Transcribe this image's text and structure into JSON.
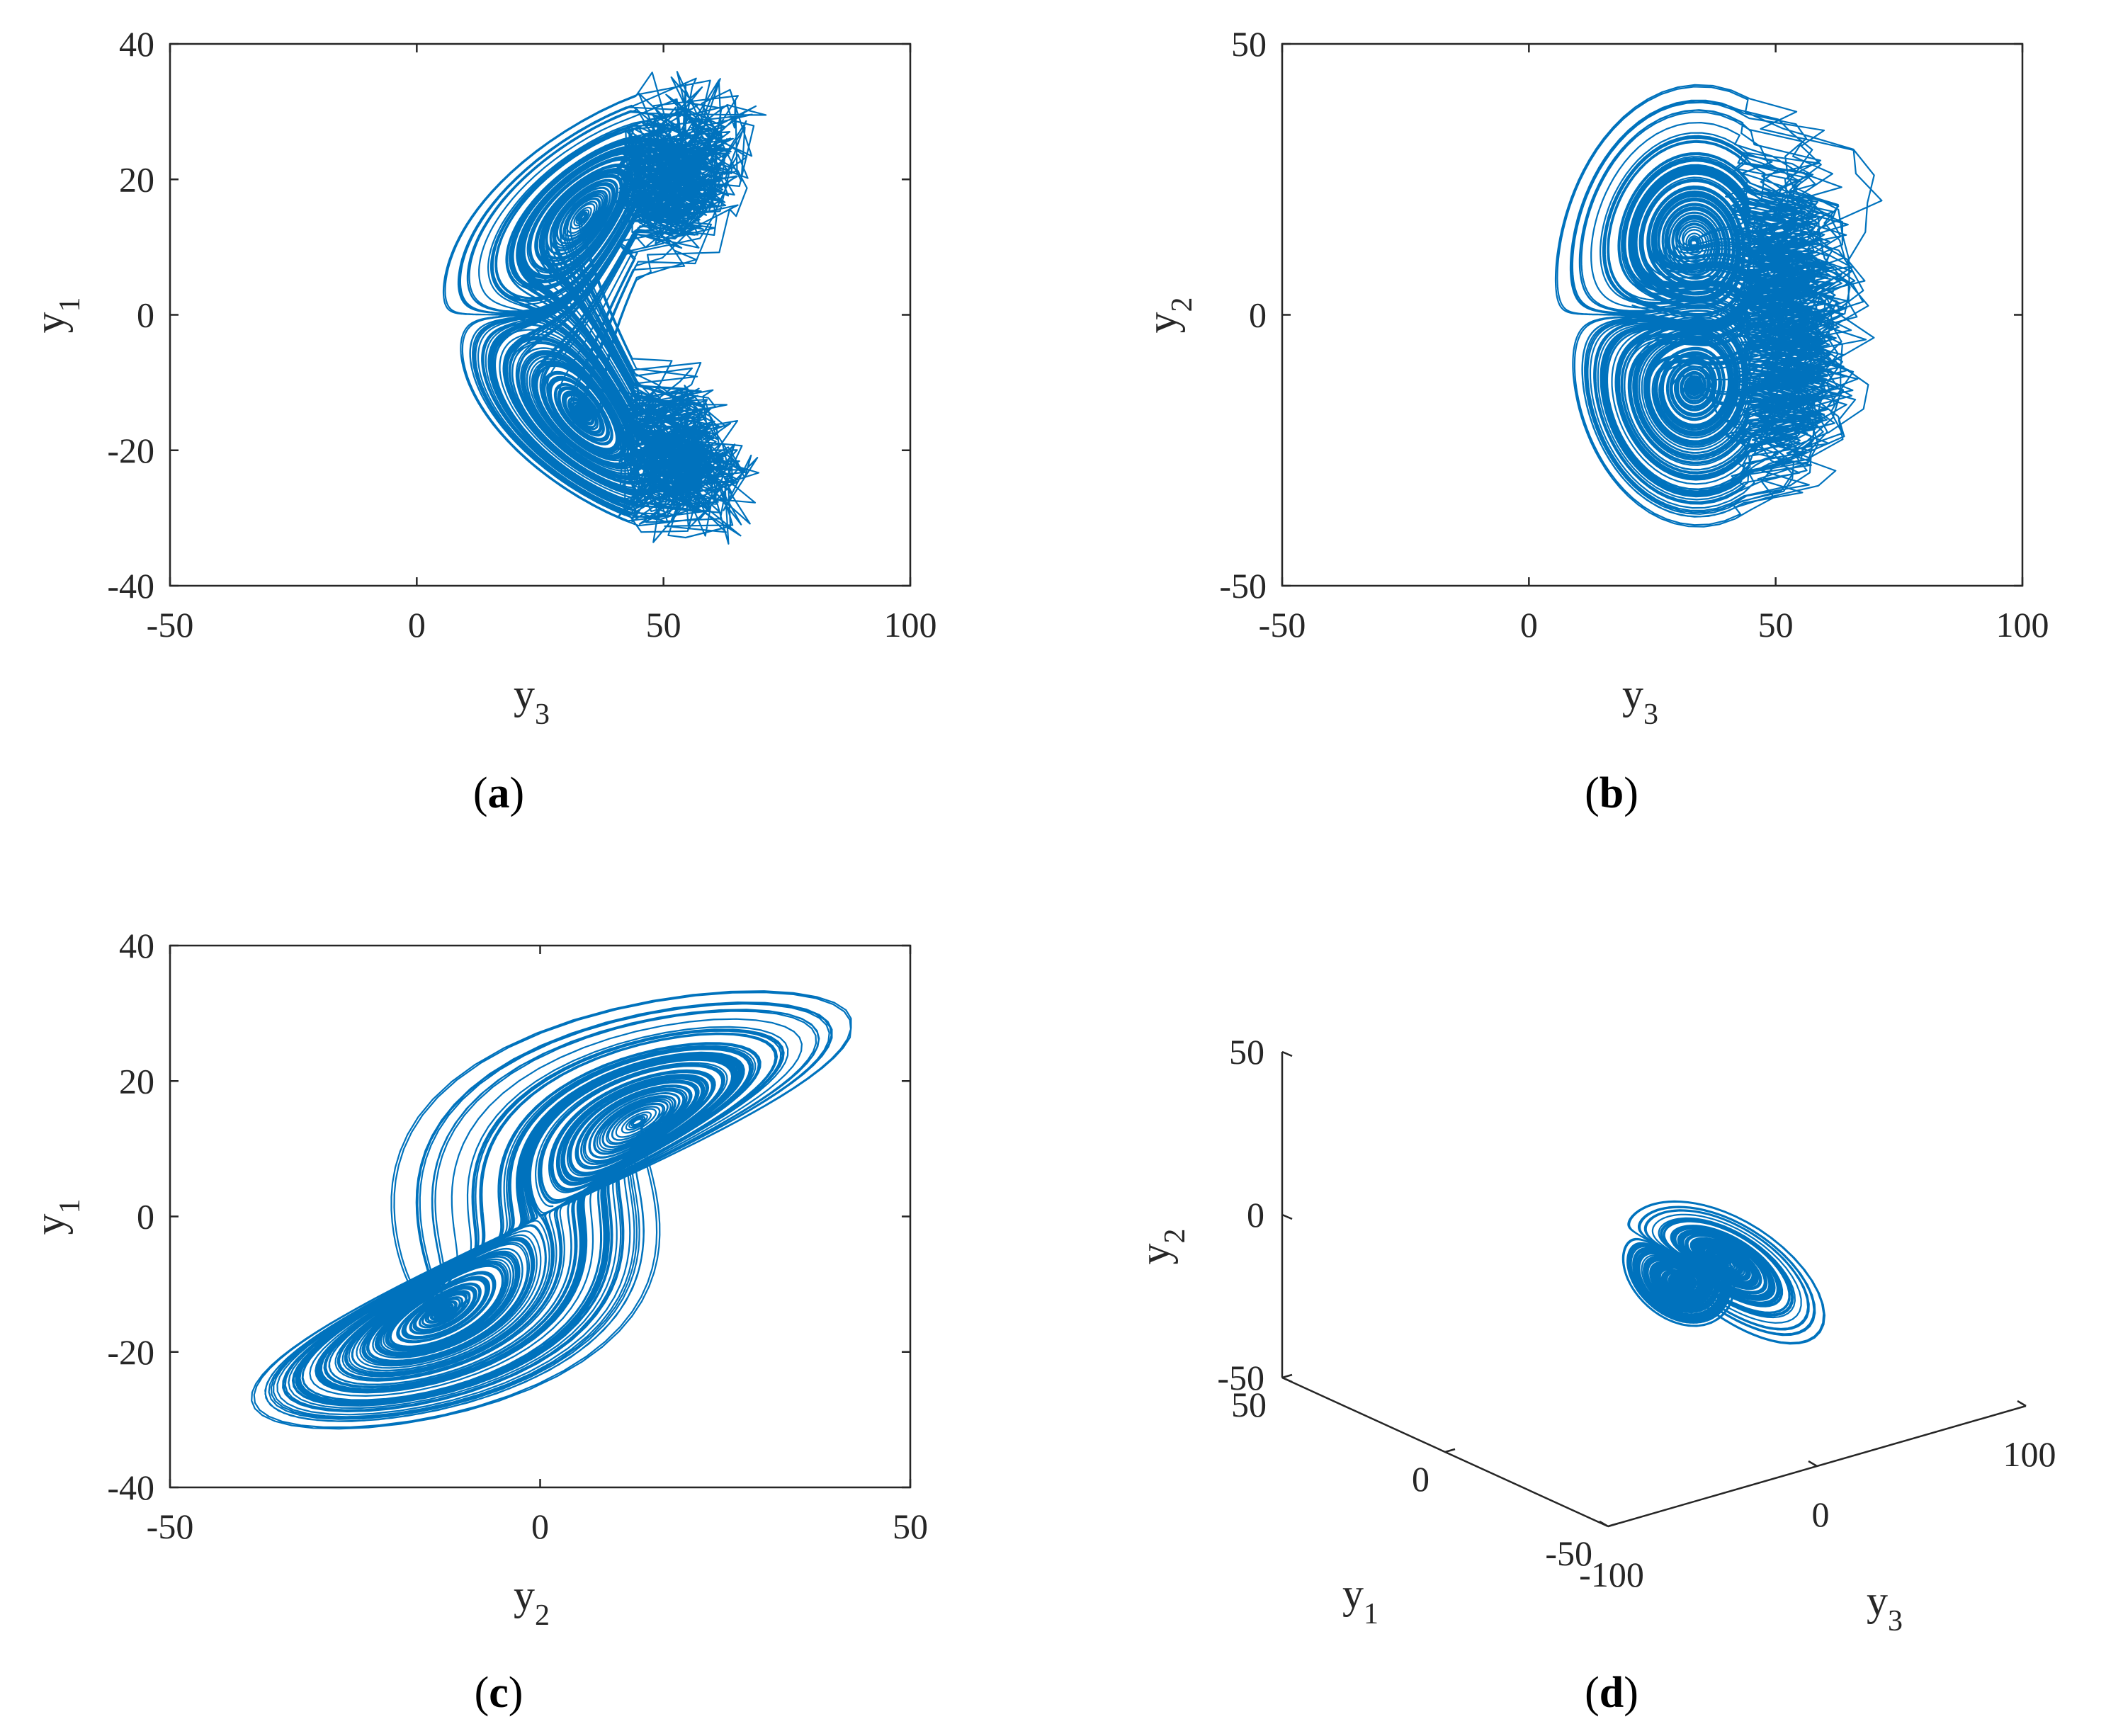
{
  "colors": {
    "series": "#0072bd",
    "axis": "#262626"
  },
  "chart_data": [
    {
      "type": "line",
      "panel": "(a)",
      "xlabel": {
        "base": "y",
        "sub": "3"
      },
      "ylabel": {
        "base": "y",
        "sub": "1"
      },
      "xlim": [
        -50,
        100
      ],
      "ylim": [
        -40,
        40
      ],
      "xticks": [
        -50,
        0,
        50,
        100
      ],
      "yticks": [
        -40,
        -20,
        0,
        20,
        40
      ],
      "attractor": {
        "x_var": "y3",
        "y_var": "y1",
        "x_center": 30,
        "x_spread": 28,
        "y_scale": 34,
        "extreme_x": 85,
        "extreme_y": 36
      }
    },
    {
      "type": "line",
      "panel": "(b)",
      "xlabel": {
        "base": "y",
        "sub": "3"
      },
      "ylabel": {
        "base": "y",
        "sub": "2"
      },
      "xlim": [
        -50,
        100
      ],
      "ylim": [
        -50,
        50
      ],
      "xticks": [
        -50,
        0,
        50,
        100
      ],
      "yticks": [
        -50,
        0,
        50
      ],
      "attractor": {
        "x_var": "y3",
        "y_var": "y2",
        "x_center": 30,
        "x_spread": 28,
        "y_scale": 42,
        "extreme_x": 85,
        "extreme_y": 45
      }
    },
    {
      "type": "line",
      "panel": "(c)",
      "xlabel": {
        "base": "y",
        "sub": "2"
      },
      "ylabel": {
        "base": "y",
        "sub": "1"
      },
      "xlim": [
        -50,
        50
      ],
      "ylim": [
        -40,
        40
      ],
      "xticks": [
        -50,
        0,
        50
      ],
      "yticks": [
        -40,
        -20,
        0,
        20,
        40
      ],
      "attractor": {
        "x_var": "y2",
        "y_var": "y1",
        "x_range": [
          -45,
          42
        ],
        "y_range": [
          -36,
          34
        ]
      }
    },
    {
      "type": "line",
      "panel": "(d)",
      "projection": "3d",
      "xlabel": {
        "base": "y",
        "sub": "1"
      },
      "ylabel": {
        "base": "y",
        "sub": "3"
      },
      "zlabel": {
        "base": "y",
        "sub": "2"
      },
      "x_ticks": [
        -50,
        0,
        50
      ],
      "y_ticks": [
        -100,
        0,
        100
      ],
      "z_ticks": [
        -50,
        0,
        50
      ]
    }
  ]
}
